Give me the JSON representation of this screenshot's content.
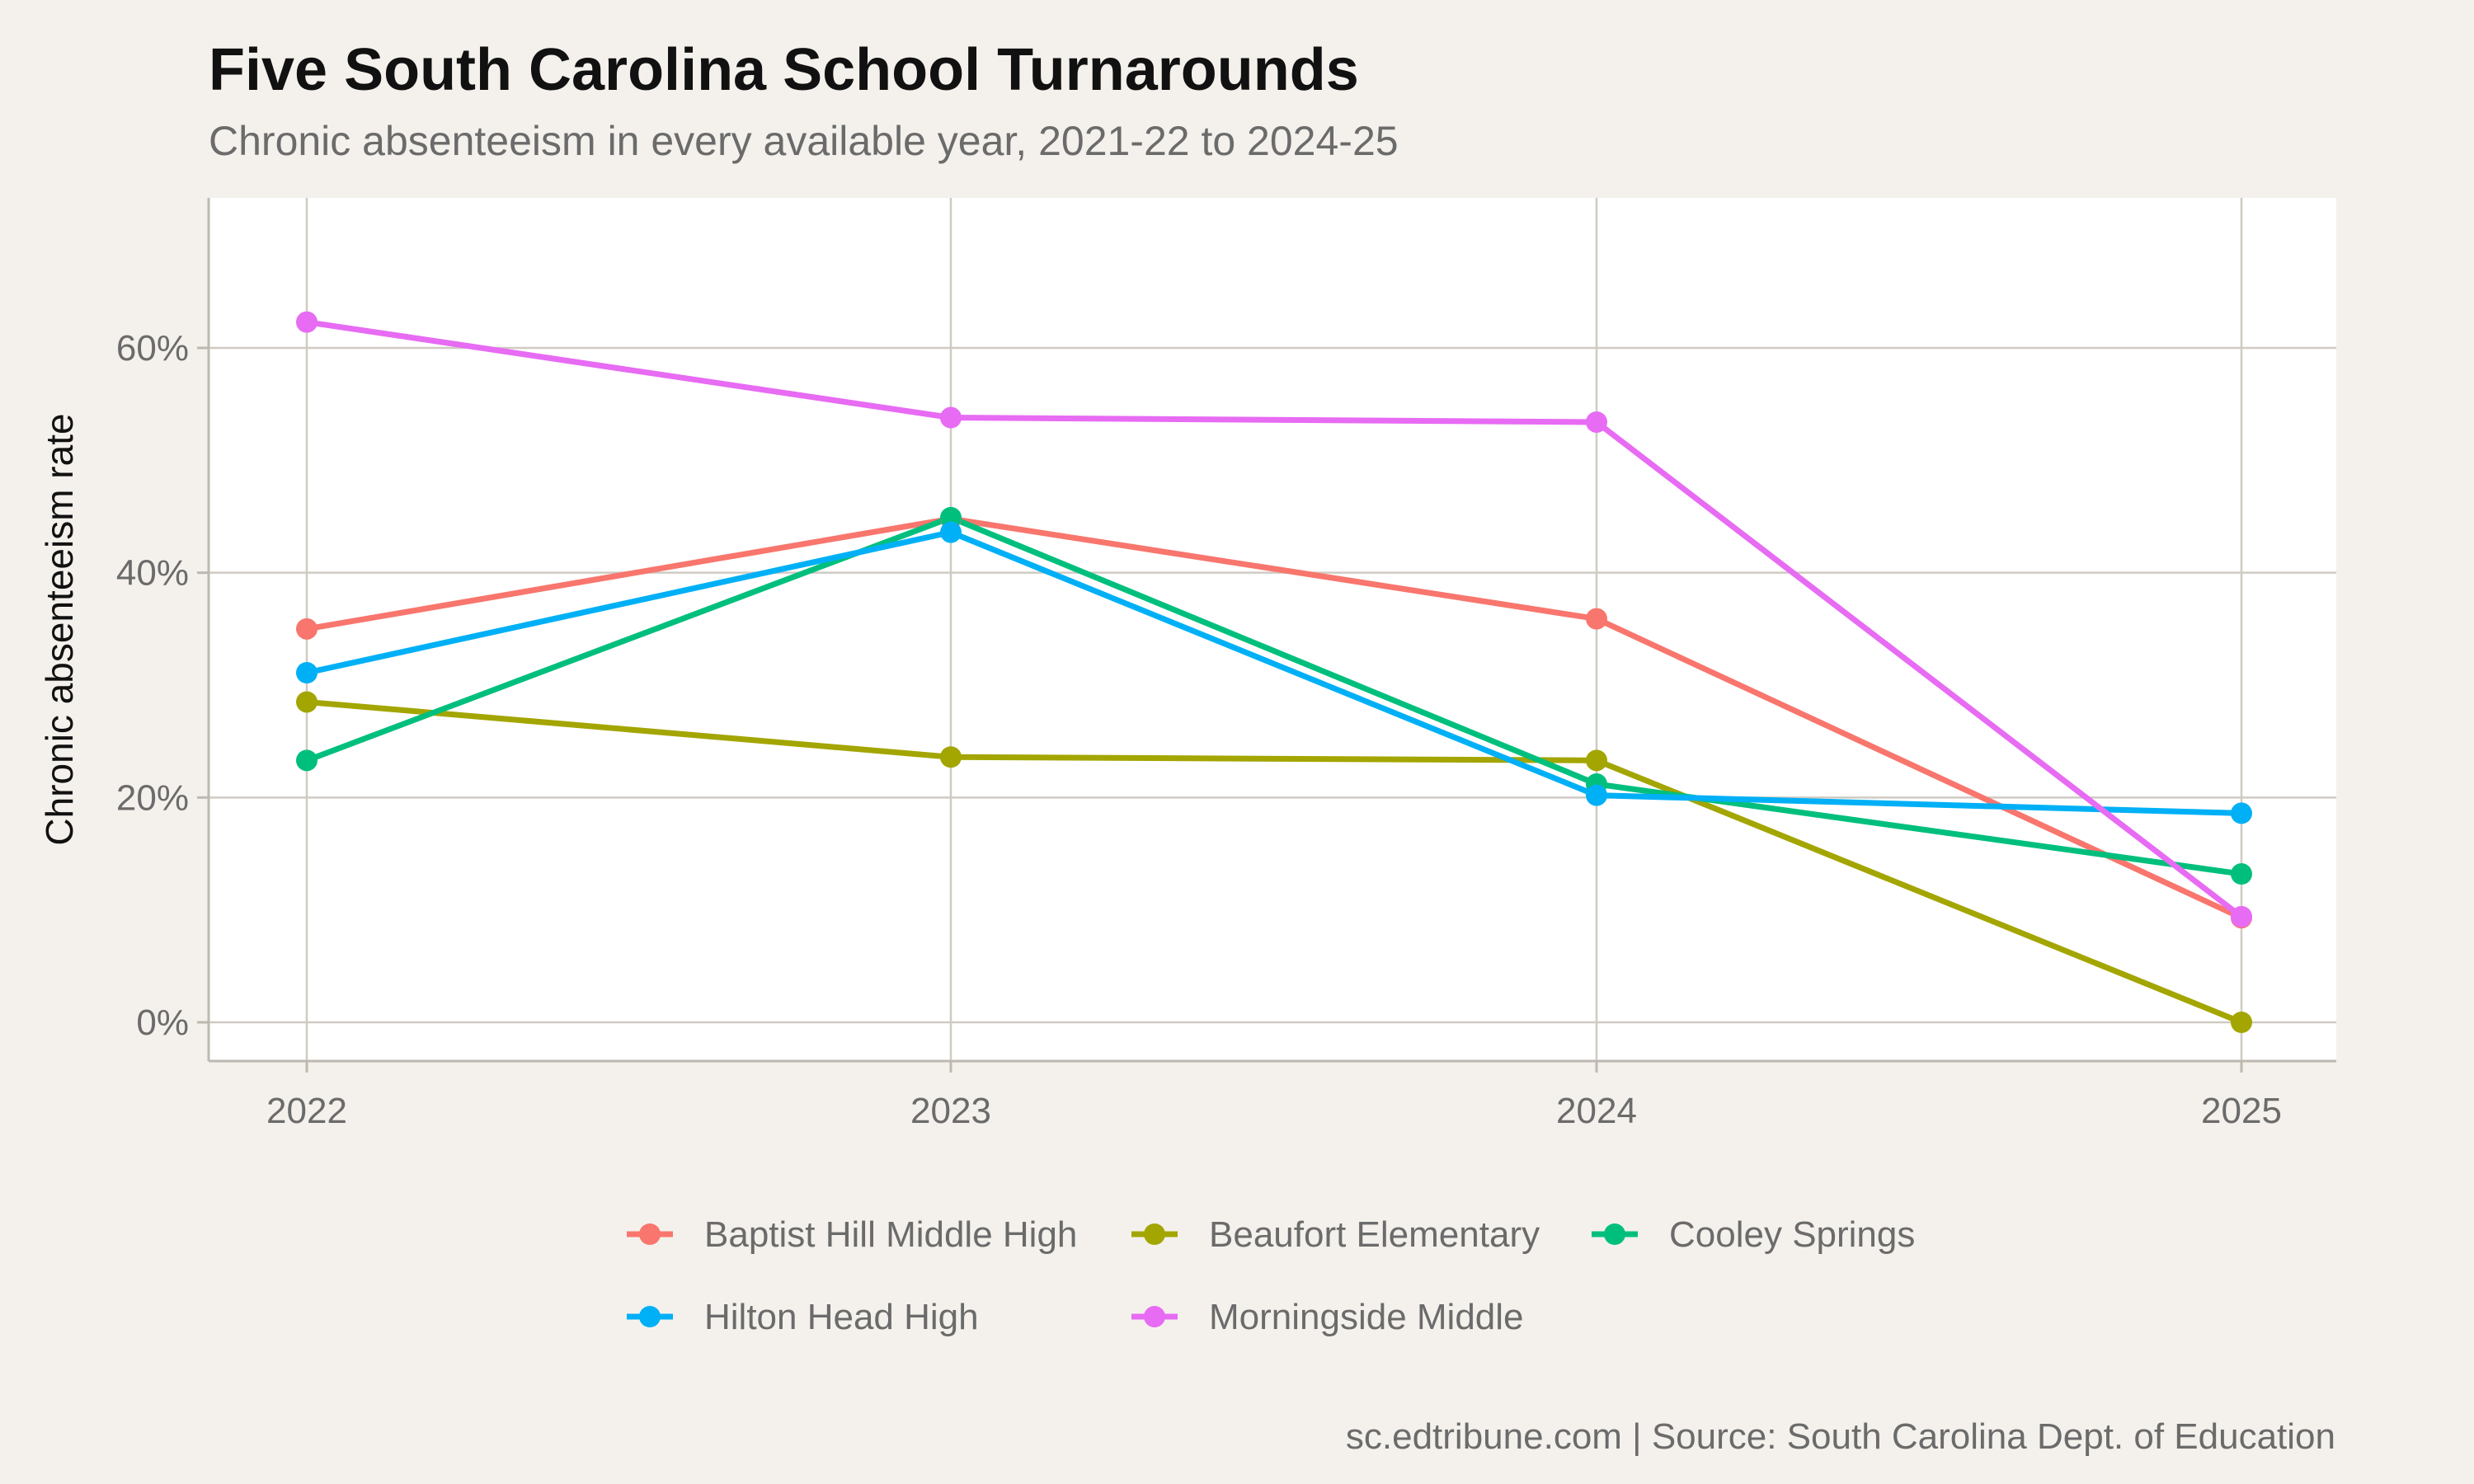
{
  "chart_data": {
    "type": "line",
    "title": "Five South Carolina School Turnarounds",
    "subtitle": "Chronic absenteeism in every available year, 2021-22 to 2024-25",
    "xlabel": "",
    "ylabel": "Chronic absenteeism rate",
    "x": [
      2022,
      2023,
      2024,
      2025
    ],
    "x_tick_labels": [
      "2022",
      "2023",
      "2024",
      "2025"
    ],
    "ylim": [
      -3.5,
      73.5
    ],
    "y_ticks": [
      0,
      20,
      40,
      60
    ],
    "y_tick_labels": [
      "0%",
      "20%",
      "40%",
      "60%"
    ],
    "grid": true,
    "legend_position": "bottom",
    "series": [
      {
        "name": "Baptist Hill Middle High",
        "color": "#f8766d",
        "values": [
          35.0,
          44.8,
          35.9,
          9.3
        ]
      },
      {
        "name": "Beaufort Elementary",
        "color": "#a3a500",
        "values": [
          28.5,
          23.6,
          23.3,
          0.0
        ]
      },
      {
        "name": "Cooley Springs",
        "color": "#00bf7d",
        "values": [
          23.3,
          44.9,
          21.2,
          13.2
        ]
      },
      {
        "name": "Hilton Head High",
        "color": "#00b0f6",
        "values": [
          31.1,
          43.6,
          20.2,
          18.6
        ]
      },
      {
        "name": "Morningside Middle",
        "color": "#e76bf3",
        "values": [
          62.3,
          53.8,
          53.4,
          9.4
        ]
      }
    ],
    "caption": "sc.edtribune.com | Source: South Carolina Dept. of Education"
  }
}
